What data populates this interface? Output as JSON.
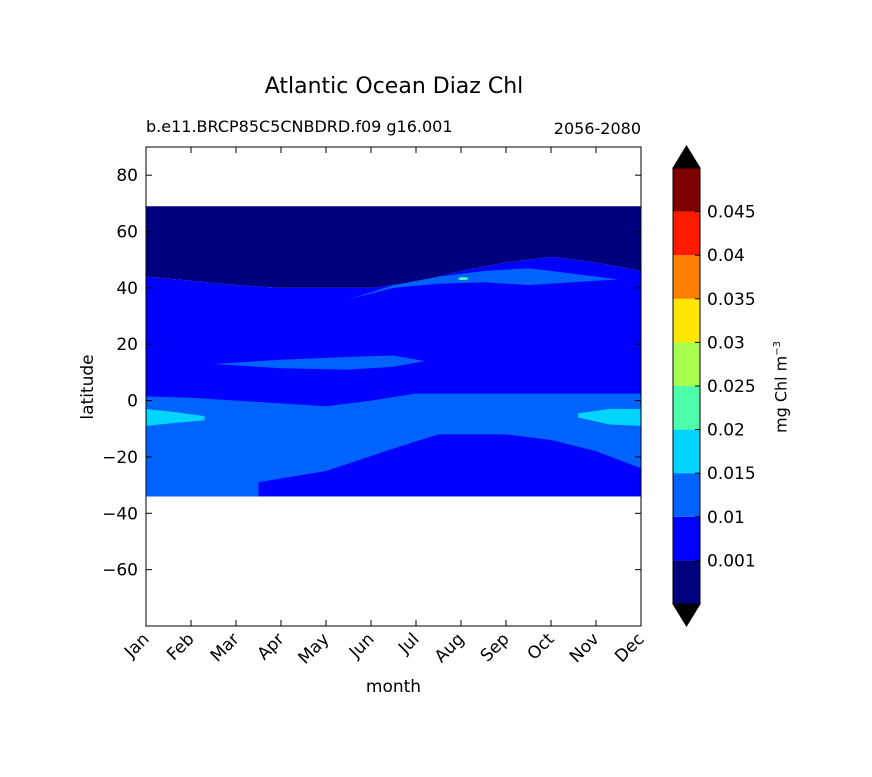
{
  "chart_data": {
    "type": "heatmap",
    "title": "Atlantic Ocean Diaz Chl",
    "subtitle_left": "b.e11.BRCP85C5CNBDRD.f09 g16.001",
    "subtitle_right": "2056-2080",
    "xlabel": "month",
    "ylabel": "latitude",
    "x_ticks": [
      "Jan",
      "Feb",
      "Mar",
      "Apr",
      "May",
      "Jun",
      "Jul",
      "Aug",
      "Sep",
      "Oct",
      "Nov",
      "Dec"
    ],
    "xlim": [
      0,
      11
    ],
    "ylim": [
      -80,
      90
    ],
    "y_ticks": [
      80,
      60,
      40,
      20,
      0,
      -20,
      -40,
      -60
    ],
    "y_tick_labels": [
      "80",
      "60",
      "40",
      "20",
      "0",
      "−20",
      "−40",
      "−60"
    ],
    "data_lat_range": [
      -34,
      69
    ],
    "colorbar": {
      "label_main": "mg Chl m",
      "label_exp": "−3",
      "colors": [
        "#00007f",
        "#0000ff",
        "#0063ff",
        "#00d5ff",
        "#4dffaa",
        "#a9ff4d",
        "#ffe600",
        "#ff7f00",
        "#ff1a00",
        "#7f0000"
      ],
      "under_color": "#000000",
      "over_color": "#000000",
      "tick_labels": [
        "0.001",
        "0.01",
        "0.015",
        "0.02",
        "0.025",
        "0.03",
        "0.035",
        "0.04",
        "0.045"
      ],
      "extend": "both"
    },
    "regions": [
      {
        "level": "0.01-0.015",
        "months": [
          0,
          1,
          2,
          3,
          4,
          5,
          6,
          7,
          8,
          9,
          10,
          11
        ],
        "lat_low": [
          -34,
          -34,
          -34,
          -34,
          -34,
          -34,
          -34,
          -34,
          -34,
          -34,
          -34,
          -34
        ],
        "lat_high": [
          44,
          42.5,
          41,
          40,
          40,
          40,
          42,
          46,
          49,
          51,
          49,
          46
        ],
        "note": "latitude band between dark-blue north cap and lower boundary"
      },
      {
        "level": "0.001-0.01",
        "months": [
          0,
          1,
          2,
          3,
          4,
          5,
          6,
          7,
          8,
          9,
          10,
          11
        ],
        "lat_low": [
          44,
          42.5,
          41,
          40,
          40,
          40,
          42,
          46,
          49,
          51,
          49,
          46
        ],
        "lat_high": [
          69,
          69,
          69,
          69,
          69,
          69,
          69,
          69,
          69,
          69,
          69,
          69
        ]
      },
      {
        "level": "0.015-0.02",
        "months": [
          0,
          1,
          2,
          3,
          4,
          5,
          6,
          7,
          8,
          9,
          10,
          11
        ],
        "lat_low": [
          -34,
          -34,
          -34,
          -34,
          -34,
          -34,
          -34,
          -34,
          -34,
          -34,
          -34,
          -34
        ],
        "lat_high": [
          1.5,
          1,
          0,
          -1,
          -2,
          0,
          2.5,
          2.5,
          2.5,
          2.5,
          2.5,
          2.5
        ]
      },
      {
        "level": "0.01-0.015",
        "months": [
          2.5,
          4,
          5.5,
          6.5,
          8,
          9,
          10,
          11
        ],
        "lat_low": [
          -29,
          -25,
          -17,
          -12,
          -12,
          -14,
          -18,
          -24
        ],
        "lat_high": [
          -34,
          -34,
          -34,
          -34,
          -34,
          -34,
          -34,
          -34
        ]
      },
      {
        "level": "0.015-0.02",
        "months": [
          4.5,
          5.5,
          6.5,
          7.5,
          8.5,
          9.5,
          10.5
        ],
        "lat_low": [
          36,
          40,
          41.5,
          42,
          41,
          42,
          43
        ],
        "lat_high": [
          36,
          41,
          44,
          46,
          47,
          45,
          43
        ]
      },
      {
        "level": "0.015-0.02",
        "months": [
          1.5,
          3,
          4.5,
          5.5,
          6.2
        ],
        "lat_low": [
          13,
          11.5,
          11,
          12,
          14
        ],
        "lat_high": [
          13,
          14.5,
          15.5,
          16,
          14
        ]
      },
      {
        "level": "0.02-0.025",
        "months": [
          0,
          0.6,
          1.3
        ],
        "lat_low": [
          -9,
          -8,
          -7
        ],
        "lat_high": [
          -3,
          -4,
          -5.5
        ]
      },
      {
        "level": "0.02-0.025",
        "months": [
          9.6,
          10.3,
          11
        ],
        "lat_low": [
          -6,
          -8.5,
          -9
        ],
        "lat_high": [
          -4.5,
          -3,
          -3
        ]
      }
    ]
  }
}
